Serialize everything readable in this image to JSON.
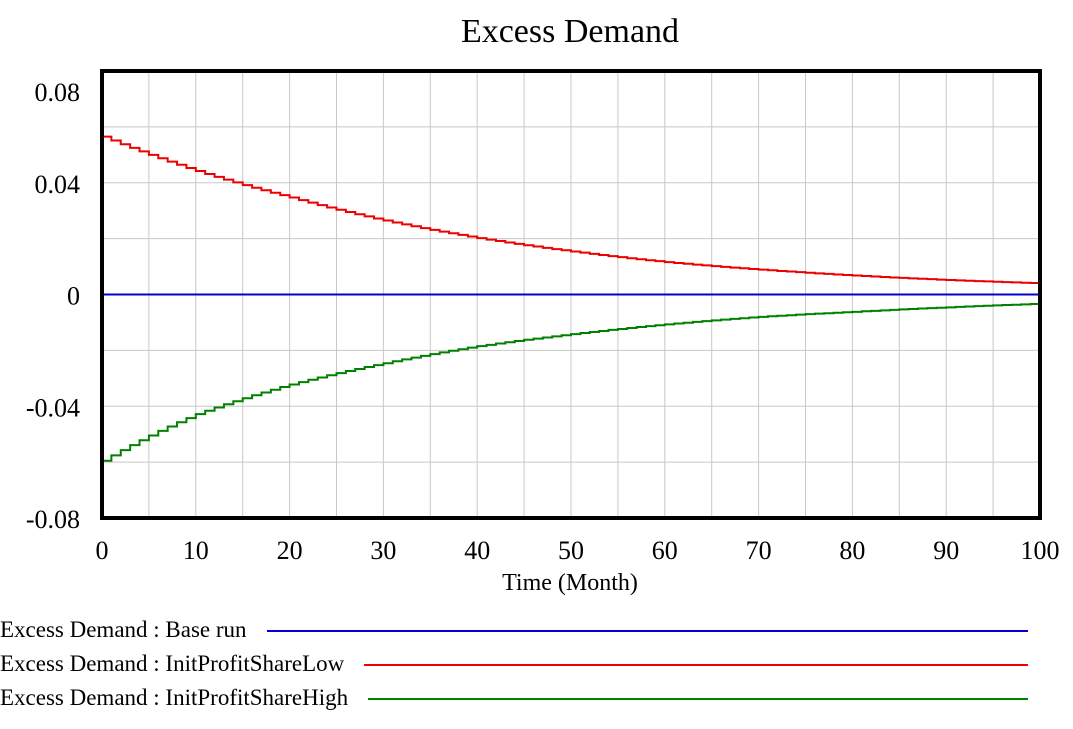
{
  "chart_data": {
    "type": "line",
    "title": "Excess Demand",
    "xlabel": "Time (Month)",
    "ylabel": "",
    "xlim": [
      0,
      100
    ],
    "ylim": [
      -0.08,
      0.08
    ],
    "x_ticks": [
      0,
      10,
      20,
      30,
      40,
      50,
      60,
      70,
      80,
      90,
      100
    ],
    "x_tick_labels": [
      "0",
      "10",
      "20",
      "30",
      "40",
      "50",
      "60",
      "70",
      "80",
      "90",
      "100"
    ],
    "y_ticks": [
      0.08,
      0.04,
      0,
      -0.04,
      -0.08
    ],
    "y_tick_labels": [
      "0.08",
      "0.04",
      "0",
      "-0.04",
      "-0.08"
    ],
    "grid": true,
    "legend_position": "bottom",
    "series": [
      {
        "name": "Excess Demand : Base run",
        "color": "#0000cc",
        "x": [
          0,
          100
        ],
        "values": [
          0,
          0
        ]
      },
      {
        "name": "Excess Demand : InitProfitShareLow",
        "color": "#ee0000",
        "x": [
          0,
          10,
          20,
          30,
          40,
          50,
          60,
          70,
          80,
          90,
          100
        ],
        "values": [
          0.0565,
          0.0442,
          0.0347,
          0.0265,
          0.0202,
          0.0154,
          0.0116,
          0.0089,
          0.0068,
          0.0052,
          0.004
        ]
      },
      {
        "name": "Excess Demand : InitProfitShareHigh",
        "color": "#008000",
        "x": [
          0,
          10,
          20,
          30,
          40,
          50,
          60,
          70,
          80,
          90,
          100
        ],
        "values": [
          -0.0595,
          -0.0428,
          -0.0322,
          -0.0246,
          -0.0185,
          -0.0142,
          -0.0107,
          -0.008,
          -0.0062,
          -0.0046,
          -0.0033
        ]
      }
    ]
  }
}
